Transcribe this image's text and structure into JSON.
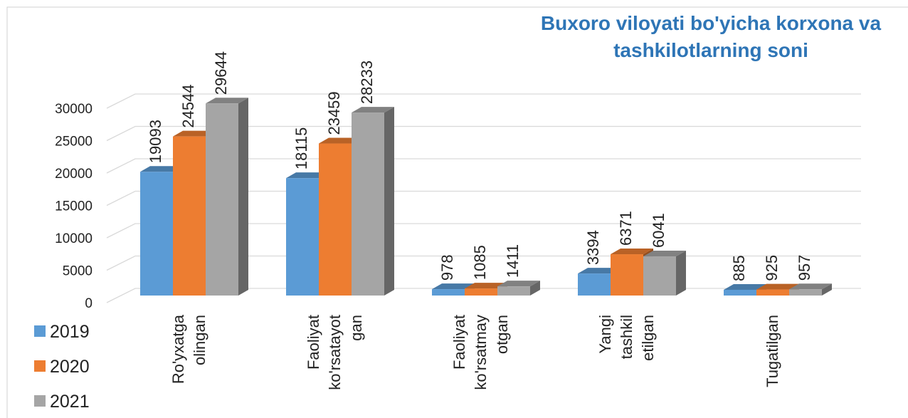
{
  "chart_data": {
    "type": "bar3d",
    "title": "Buxoro viloyati bo'yicha korxona va tashkilotlarning soni",
    "categories": [
      "Ro'yxatga olingan",
      "Faoliyat ko'rsatayot gan",
      "Faoliyat ko'rsatmay otgan",
      "Yangi tashkil etilgan",
      "Tugatilgan"
    ],
    "series": [
      {
        "name": "2019",
        "color": "#5b9bd5",
        "values": [
          19093,
          18115,
          978,
          3394,
          885
        ]
      },
      {
        "name": "2020",
        "color": "#ed7d31",
        "values": [
          24544,
          23459,
          1085,
          6371,
          925
        ]
      },
      {
        "name": "2021",
        "color": "#a5a5a5",
        "values": [
          29644,
          28233,
          1411,
          6041,
          957
        ]
      }
    ],
    "ylim": [
      0,
      30000
    ],
    "yticks": [
      0,
      5000,
      10000,
      15000,
      20000,
      25000,
      30000
    ],
    "grid": true,
    "legend": "left"
  }
}
